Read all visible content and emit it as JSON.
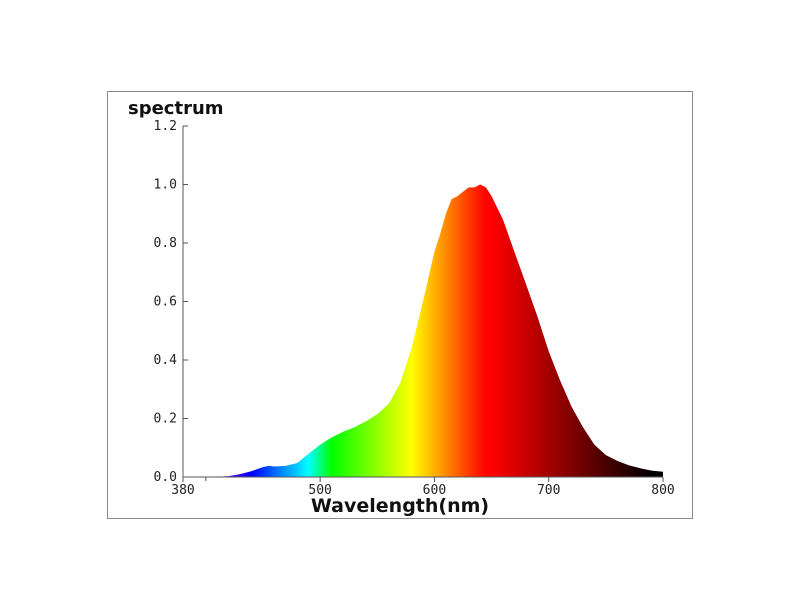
{
  "chart_data": {
    "type": "area",
    "ylabel": "spectrum",
    "xlabel": "Wavelength(nm)",
    "xlim": [
      380,
      800
    ],
    "ylim": [
      0,
      1.2
    ],
    "x_ticks": [
      380,
      500,
      600,
      700,
      800
    ],
    "y_ticks": [
      "0.0",
      "0.2",
      "0.4",
      "0.6",
      "0.8",
      "1.0",
      "1.2"
    ],
    "grid": false,
    "fill": "wavelength-colored spectrum",
    "series": [
      {
        "x": [
          380,
          400,
          410,
          420,
          430,
          440,
          450,
          455,
          460,
          470,
          480,
          490,
          500,
          510,
          520,
          530,
          540,
          550,
          560,
          570,
          580,
          590,
          600,
          605,
          610,
          615,
          620,
          625,
          630,
          635,
          640,
          645,
          650,
          660,
          670,
          680,
          690,
          700,
          710,
          720,
          730,
          740,
          750,
          760,
          770,
          780,
          790,
          800
        ],
        "values": [
          0.0,
          0.0,
          0.001,
          0.003,
          0.01,
          0.02,
          0.034,
          0.038,
          0.036,
          0.038,
          0.048,
          0.08,
          0.11,
          0.135,
          0.155,
          0.17,
          0.19,
          0.215,
          0.25,
          0.32,
          0.44,
          0.6,
          0.77,
          0.83,
          0.9,
          0.95,
          0.96,
          0.975,
          0.99,
          0.99,
          1.0,
          0.99,
          0.96,
          0.88,
          0.77,
          0.66,
          0.55,
          0.43,
          0.33,
          0.24,
          0.17,
          0.11,
          0.075,
          0.055,
          0.04,
          0.03,
          0.022,
          0.018
        ]
      }
    ]
  }
}
